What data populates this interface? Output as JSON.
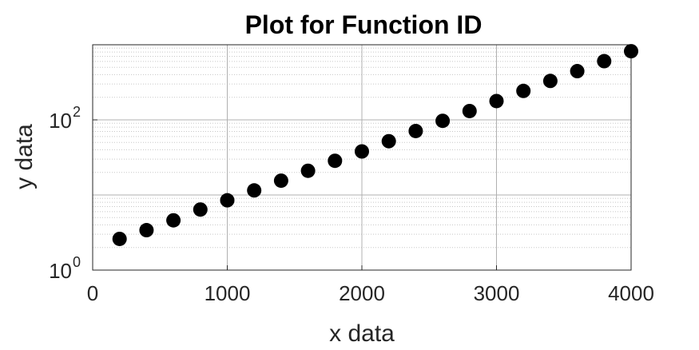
{
  "chart_data": {
    "type": "scatter",
    "title": "Plot for Function ID",
    "xlabel": "x data",
    "ylabel": "y data",
    "xlim": [
      0,
      4000
    ],
    "ylim": [
      1,
      1000
    ],
    "yscale": "log",
    "x_ticks": [
      "0",
      "1000",
      "2000",
      "3000",
      "4000"
    ],
    "y_ticks": [
      {
        "base": "10",
        "exp": "0"
      },
      {
        "base": "10",
        "exp": "2"
      }
    ],
    "grid": true,
    "minor_grid": true,
    "marker_color": "#000000",
    "series": [
      {
        "x": [
          200,
          400,
          600,
          800,
          1000,
          1200,
          1400,
          1600,
          1800,
          2000,
          2200,
          2400,
          2600,
          2800,
          3000,
          3200,
          3400,
          3600,
          3800,
          4000
        ],
        "y": [
          2.6,
          3.4,
          4.6,
          6.4,
          8.5,
          11.5,
          15.5,
          21,
          28.5,
          38,
          52,
          71,
          97,
          131,
          178,
          243,
          330,
          445,
          605,
          820
        ]
      }
    ]
  }
}
